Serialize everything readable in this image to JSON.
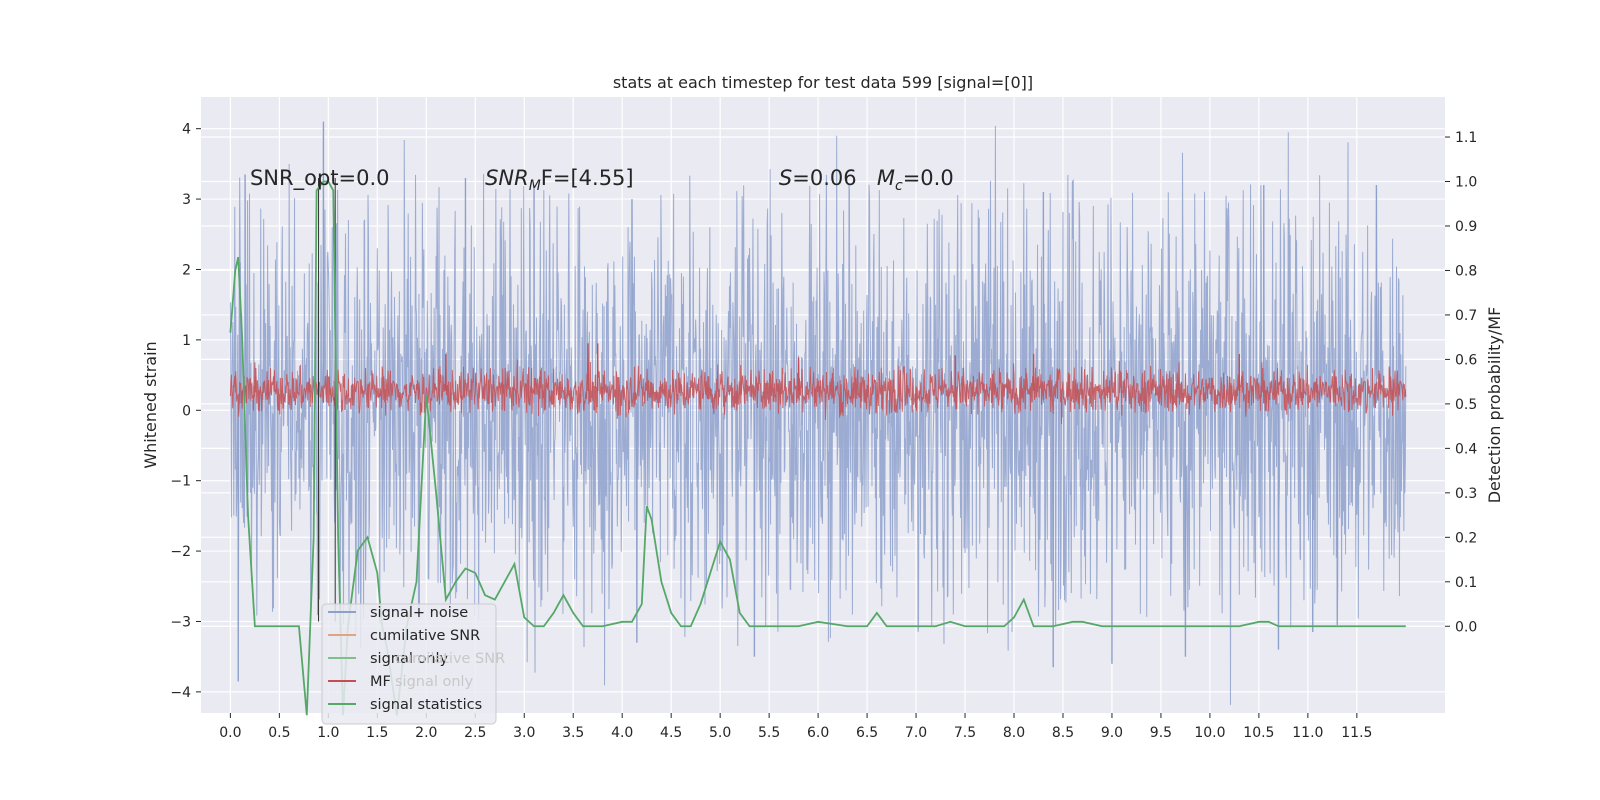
{
  "chart_data": {
    "type": "line",
    "title": "stats at each timestep for test data 599 [signal=[0]]",
    "xlabel": "",
    "ylabel": "Whitened strain",
    "ylabel_right": "Detection probability/MF",
    "xlim": [
      -0.3,
      12.4
    ],
    "ylim": [
      -4.3,
      4.45
    ],
    "ylim_right": [
      -0.195,
      1.19
    ],
    "x_ticks": [
      0.0,
      0.5,
      1.0,
      1.5,
      2.0,
      2.5,
      3.0,
      3.5,
      4.0,
      4.5,
      5.0,
      5.5,
      6.0,
      6.5,
      7.0,
      7.5,
      8.0,
      8.5,
      9.0,
      9.5,
      10.0,
      10.5,
      11.0,
      11.5
    ],
    "x_tick_labels": [
      "0.0",
      "0.5",
      "1.0",
      "1.5",
      "2.0",
      "2.5",
      "3.0",
      "3.5",
      "4.0",
      "4.5",
      "5.0",
      "5.5",
      "6.0",
      "6.5",
      "7.0",
      "7.5",
      "8.0",
      "8.5",
      "9.0",
      "9.5",
      "10.0",
      "10.5",
      "11.0",
      "11.5"
    ],
    "y_ticks": [
      4,
      3,
      2,
      1,
      0,
      -1,
      -2,
      -3,
      -4
    ],
    "y_tick_labels": [
      "4",
      "3",
      "2",
      "1",
      "0",
      "−1",
      "−2",
      "−3",
      "−4"
    ],
    "y_right_ticks": [
      1.1,
      1.0,
      0.9,
      0.8,
      0.7,
      0.6,
      0.5,
      0.4,
      0.3,
      0.2,
      0.1,
      0.0
    ],
    "y_right_tick_labels": [
      "1.1",
      "1.0",
      "0.9",
      "0.8",
      "0.7",
      "0.6",
      "0.5",
      "0.4",
      "0.3",
      "0.2",
      "0.1",
      "0.0"
    ],
    "annotations": [
      {
        "text": "SNR_opt=0.0",
        "x": 0.2,
        "y": 3.3
      },
      {
        "text": "SNR",
        "sub": "M",
        "rest": "F=[4.55]",
        "x": 2.6,
        "y": 3.3
      },
      {
        "text": "S",
        "rest": "=0.06",
        "x": 5.6,
        "y": 3.3
      },
      {
        "text": "M",
        "sub": "c",
        "rest": "=0.0",
        "x": 6.6,
        "y": 3.3
      }
    ],
    "vlines": [
      0.9,
      1.07
    ],
    "legend": {
      "location": "lower-left",
      "entries": [
        {
          "label": "signal+ noise",
          "color": "#8da0cb"
        },
        {
          "label": "cumilative SNR",
          "color": "#e1a383"
        },
        {
          "label": "signal only",
          "color": "#7fbf8c"
        },
        {
          "label": "cumilative SNR",
          "color": "#cccccc"
        },
        {
          "label": "MF",
          "color": "#c44e52"
        },
        {
          "label": "signal only",
          "color": "#cccccc"
        },
        {
          "label": "signal statistics",
          "color": "#55a868"
        }
      ]
    },
    "series": [
      {
        "name": "signal+ noise",
        "axis": "left",
        "style": "noise",
        "x_range": [
          0.0,
          12.0
        ],
        "envelope_upper_typical": 2.6,
        "envelope_lower_typical": -2.4,
        "spikes": [
          [
            0.1,
            2.1
          ],
          [
            0.15,
            3.35
          ],
          [
            0.95,
            4.1
          ],
          [
            0.08,
            -3.85
          ],
          [
            2.4,
            3.3
          ],
          [
            3.1,
            3.2
          ],
          [
            4.1,
            3.0
          ],
          [
            4.15,
            -3.3
          ],
          [
            5.35,
            -3.5
          ],
          [
            8.4,
            -3.65
          ],
          [
            9.0,
            -3.6
          ],
          [
            9.75,
            -3.5
          ],
          [
            10.7,
            -3.4
          ],
          [
            11.05,
            -3.15
          ],
          [
            11.3,
            -3.05
          ],
          [
            11.7,
            3.2
          ],
          [
            10.55,
            3.2
          ],
          [
            8.3,
            3.1
          ]
        ],
        "color": "#8da0cb"
      },
      {
        "name": "MF",
        "axis": "left",
        "style": "noise",
        "x_range": [
          0.0,
          12.0
        ],
        "envelope_upper_typical": 0.55,
        "envelope_lower_typical": 0.0,
        "spikes": [
          [
            3.65,
            0.95
          ],
          [
            3.75,
            0.95
          ],
          [
            2.2,
            0.8
          ],
          [
            8.2,
            0.8
          ],
          [
            10.3,
            0.8
          ],
          [
            7.4,
            0.78
          ],
          [
            5.8,
            0.75
          ]
        ],
        "color": "#c44e52"
      },
      {
        "name": "signal statistics",
        "axis": "right",
        "style": "line",
        "x": [
          0.0,
          0.05,
          0.08,
          0.12,
          0.18,
          0.25,
          0.3,
          0.4,
          0.5,
          0.6,
          0.7,
          0.78,
          0.85,
          0.88,
          0.95,
          1.0,
          1.05,
          1.1,
          1.15,
          1.2,
          1.3,
          1.4,
          1.5,
          1.55,
          1.6,
          1.7,
          1.8,
          1.9,
          2.0,
          2.1,
          2.2,
          2.3,
          2.4,
          2.5,
          2.6,
          2.7,
          2.8,
          2.9,
          3.0,
          3.1,
          3.2,
          3.3,
          3.4,
          3.5,
          3.6,
          3.8,
          4.0,
          4.1,
          4.2,
          4.25,
          4.3,
          4.4,
          4.5,
          4.6,
          4.7,
          4.8,
          4.9,
          5.0,
          5.1,
          5.2,
          5.3,
          5.5,
          5.8,
          6.0,
          6.3,
          6.5,
          6.6,
          6.7,
          6.8,
          7.0,
          7.2,
          7.35,
          7.5,
          7.7,
          7.9,
          8.0,
          8.1,
          8.2,
          8.4,
          8.6,
          8.7,
          8.9,
          9.2,
          9.6,
          10.0,
          10.3,
          10.5,
          10.6,
          10.7,
          10.9,
          11.3,
          11.6,
          11.9,
          12.0
        ],
        "y": [
          0.66,
          0.8,
          0.83,
          0.65,
          0.25,
          0.0,
          0.0,
          0.0,
          0.0,
          0.0,
          0.0,
          -0.2,
          0.2,
          0.98,
          1.0,
          1.0,
          0.98,
          0.2,
          -0.2,
          0.0,
          0.17,
          0.2,
          0.12,
          0.0,
          -0.05,
          -0.2,
          0.0,
          0.1,
          0.52,
          0.3,
          0.06,
          0.1,
          0.13,
          0.12,
          0.07,
          0.06,
          0.1,
          0.14,
          0.02,
          0.0,
          0.0,
          0.03,
          0.07,
          0.03,
          0.0,
          0.0,
          0.01,
          0.01,
          0.05,
          0.27,
          0.24,
          0.1,
          0.03,
          0.0,
          0.0,
          0.05,
          0.12,
          0.19,
          0.15,
          0.03,
          0.0,
          0.0,
          0.0,
          0.01,
          0.0,
          0.0,
          0.03,
          0.0,
          0.0,
          0.0,
          0.0,
          0.01,
          0.0,
          0.0,
          0.0,
          0.02,
          0.06,
          0.0,
          0.0,
          0.01,
          0.01,
          0.0,
          0.0,
          0.0,
          0.0,
          0.0,
          0.01,
          0.01,
          0.0,
          0.0,
          0.0,
          0.0,
          0.0,
          0.0
        ],
        "color": "#55a868"
      }
    ]
  }
}
